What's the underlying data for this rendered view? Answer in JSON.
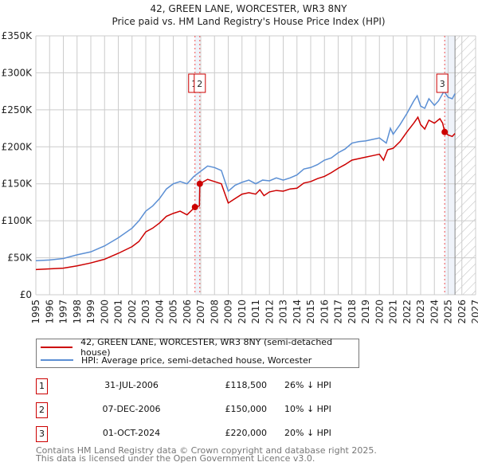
{
  "chart_data": {
    "type": "line",
    "title": "42, GREEN LANE, WORCESTER, WR3 8NY",
    "subtitle": "Price paid vs. HM Land Registry's House Price Index (HPI)",
    "xlim": [
      1995,
      2027
    ],
    "ylim": [
      0,
      350000
    ],
    "x_ticks": [
      "1995",
      "1996",
      "1997",
      "1998",
      "1999",
      "2000",
      "2001",
      "2002",
      "2003",
      "2004",
      "2005",
      "2006",
      "2007",
      "2008",
      "2009",
      "2010",
      "2011",
      "2012",
      "2013",
      "2014",
      "2015",
      "2016",
      "2017",
      "2018",
      "2019",
      "2020",
      "2021",
      "2022",
      "2023",
      "2024",
      "2025",
      "2026",
      "2027"
    ],
    "y_ticks": [
      {
        "v": 0,
        "label": "£0"
      },
      {
        "v": 50000,
        "label": "£50K"
      },
      {
        "v": 100000,
        "label": "£100K"
      },
      {
        "v": 150000,
        "label": "£150K"
      },
      {
        "v": 200000,
        "label": "£200K"
      },
      {
        "v": 250000,
        "label": "£250K"
      },
      {
        "v": 300000,
        "label": "£300K"
      },
      {
        "v": 350000,
        "label": "£350K"
      }
    ],
    "grid": true,
    "data_end": 2025.5,
    "series": [
      {
        "name": "42, GREEN LANE, WORCESTER, WR3 8NY (semi-detached house)",
        "color": "#cc0000",
        "x": [
          1995,
          1996,
          1997,
          1998,
          1999,
          2000,
          2001,
          2002,
          2002.5,
          2003,
          2003.5,
          2004,
          2004.5,
          2005,
          2005.5,
          2006,
          2006.58,
          2006.9,
          2006.93,
          2007.5,
          2008,
          2008.5,
          2009,
          2009.5,
          2010,
          2010.5,
          2011,
          2011.3,
          2011.6,
          2012,
          2012.5,
          2013,
          2013.5,
          2014,
          2014.5,
          2015,
          2015.5,
          2016,
          2016.5,
          2017,
          2017.5,
          2018,
          2018.5,
          2019,
          2019.5,
          2020,
          2020.3,
          2020.6,
          2021,
          2021.5,
          2022,
          2022.5,
          2022.8,
          2023,
          2023.3,
          2023.6,
          2024,
          2024.4,
          2024.6,
          2024.75,
          2025,
          2025.3,
          2025.5
        ],
        "y": [
          34000,
          35000,
          36000,
          39000,
          43000,
          48000,
          56000,
          65000,
          72000,
          85000,
          90000,
          97000,
          106000,
          110000,
          113000,
          108000,
          118500,
          120000,
          150000,
          156000,
          153000,
          150000,
          124000,
          130000,
          136000,
          138000,
          136000,
          142000,
          134000,
          139000,
          141000,
          140000,
          143000,
          144000,
          151000,
          153000,
          157000,
          160000,
          165000,
          171000,
          176000,
          182000,
          184000,
          186000,
          188000,
          190000,
          182000,
          196000,
          198000,
          207000,
          220000,
          232000,
          240000,
          230000,
          224000,
          236000,
          232000,
          238000,
          232000,
          220000,
          216000,
          214000,
          218000
        ]
      },
      {
        "name": "HPI: Average price, semi-detached house, Worcester",
        "color": "#5b8fd4",
        "x": [
          1995,
          1996,
          1997,
          1998,
          1999,
          2000,
          2001,
          2002,
          2002.5,
          2003,
          2003.5,
          2004,
          2004.5,
          2005,
          2005.5,
          2006,
          2006.5,
          2007,
          2007.5,
          2008,
          2008.5,
          2009,
          2009.5,
          2010,
          2010.5,
          2011,
          2011.5,
          2012,
          2012.5,
          2013,
          2013.5,
          2014,
          2014.5,
          2015,
          2015.5,
          2016,
          2016.5,
          2017,
          2017.5,
          2018,
          2018.5,
          2019,
          2019.5,
          2020,
          2020.5,
          2020.8,
          2021,
          2021.5,
          2022,
          2022.5,
          2022.75,
          2023,
          2023.3,
          2023.6,
          2024,
          2024.3,
          2024.7,
          2025,
          2025.3,
          2025.5
        ],
        "y": [
          46000,
          47000,
          49000,
          54000,
          58000,
          66000,
          77000,
          90000,
          100000,
          113000,
          120000,
          130000,
          143000,
          150000,
          153000,
          150000,
          160000,
          167000,
          174000,
          172000,
          168000,
          140000,
          148000,
          152000,
          155000,
          150000,
          155000,
          154000,
          158000,
          155000,
          158000,
          162000,
          170000,
          172000,
          176000,
          182000,
          185000,
          192000,
          197000,
          205000,
          207000,
          208000,
          210000,
          212000,
          205000,
          225000,
          217000,
          230000,
          245000,
          262000,
          269000,
          255000,
          252000,
          265000,
          256000,
          262000,
          275000,
          267000,
          265000,
          272000
        ]
      }
    ],
    "sales": [
      {
        "id": "1",
        "date": "31-JUL-2006",
        "x": 2006.58,
        "price": 118500,
        "price_label": "£118,500",
        "hpi": "26% ↓ HPI"
      },
      {
        "id": "2",
        "date": "07-DEC-2006",
        "x": 2006.93,
        "price": 150000,
        "price_label": "£150,000",
        "hpi": "10% ↓ HPI"
      },
      {
        "id": "3",
        "date": "01-OCT-2024",
        "x": 2024.75,
        "price": 220000,
        "price_label": "£220,000",
        "hpi": "20% ↓ HPI"
      }
    ],
    "footer": [
      "Contains HM Land Registry data © Crown copyright and database right 2025.",
      "This data is licensed under the Open Government Licence v3.0."
    ]
  }
}
